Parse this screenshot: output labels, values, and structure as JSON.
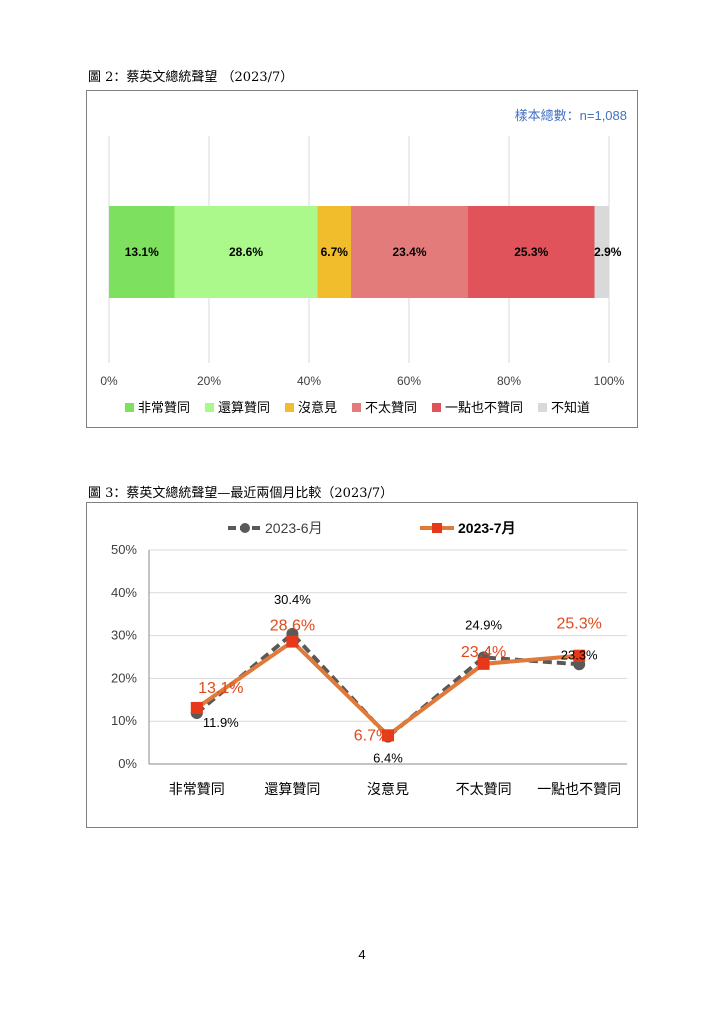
{
  "figure2": {
    "caption": "圖 2：蔡英文總統聲望 （2023/7）",
    "sample_note": "樣本總數：n=1,088"
  },
  "figure3": {
    "caption": "圖 3：蔡英文總統聲望—最近兩個月比較（2023/7）"
  },
  "page_number": "4",
  "chart_data": [
    {
      "type": "bar",
      "orientation": "horizontal",
      "stacked": true,
      "categories": [
        "非常贊同",
        "還算贊同",
        "沒意見",
        "不太贊同",
        "一點也不贊同",
        "不知道"
      ],
      "values": [
        13.1,
        28.6,
        6.7,
        23.4,
        25.3,
        2.9
      ],
      "labels": [
        "13.1%",
        "28.6%",
        "6.7%",
        "23.4%",
        "25.3%",
        "2.9%"
      ],
      "colors": [
        "#7ee05f",
        "#aaf98a",
        "#f1bd2d",
        "#e47b7b",
        "#e0535a",
        "#d9d9d9"
      ],
      "ticks": [
        "0%",
        "20%",
        "40%",
        "60%",
        "80%",
        "100%"
      ],
      "xlim": [
        0,
        100
      ],
      "grid": true,
      "legend": "bottom"
    },
    {
      "type": "line",
      "categories": [
        "非常贊同",
        "還算贊同",
        "沒意見",
        "不太贊同",
        "一點也不贊同"
      ],
      "series": [
        {
          "name": "2023-6月",
          "values": [
            11.9,
            30.4,
            6.4,
            24.9,
            23.3
          ],
          "labels": [
            "11.9%",
            "30.4%",
            "6.4%",
            "24.9%",
            "23.3%"
          ],
          "color": "#595959",
          "style": "dashed"
        },
        {
          "name": "2023-7月",
          "values": [
            13.1,
            28.6,
            6.7,
            23.4,
            25.3
          ],
          "labels": [
            "13.1%",
            "28.6%",
            "6.7%",
            "23.4%",
            "25.3%"
          ],
          "color": "#e07a3a",
          "marker_color": "#e8381a",
          "label_color": "#e04a1a"
        }
      ],
      "ticks": [
        "0%",
        "10%",
        "20%",
        "30%",
        "40%",
        "50%"
      ],
      "ylim": [
        0,
        50
      ],
      "grid": true,
      "legend": "top"
    }
  ]
}
